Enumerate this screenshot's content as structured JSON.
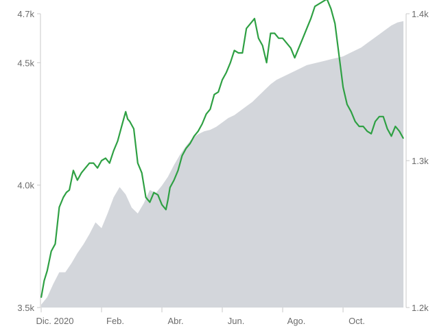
{
  "chart_data": {
    "type": "line",
    "title": "",
    "xlabel": "",
    "grid": false,
    "x_ticks": [
      {
        "label": "Dic. 2020",
        "x": 0
      },
      {
        "label": "Feb.",
        "x": 60
      },
      {
        "label": "Abr.",
        "x": 120
      },
      {
        "label": "Jun.",
        "x": 180
      },
      {
        "label": "Ago.",
        "x": 240
      },
      {
        "label": "Oct.",
        "x": 300
      }
    ],
    "xlim": [
      0,
      362
    ],
    "left_axis": {
      "ylim": [
        3.5,
        4.7
      ],
      "ticks": [
        {
          "label": "3.5k",
          "value": 3.5
        },
        {
          "label": "4.0k",
          "value": 4.0
        },
        {
          "label": "4.5k",
          "value": 4.5
        },
        {
          "label": "4.7k",
          "value": 4.7
        }
      ]
    },
    "right_axis": {
      "ylim": [
        1.2,
        1.4
      ],
      "ticks": [
        {
          "label": "1.2k",
          "value": 1.2
        },
        {
          "label": "1.3k",
          "value": 1.3
        },
        {
          "label": "1.4k",
          "value": 1.4
        }
      ]
    },
    "series": [
      {
        "axis": "left",
        "style": "line",
        "color": "#2ea043",
        "points": [
          [
            0,
            3.54
          ],
          [
            3,
            3.61
          ],
          [
            6,
            3.65
          ],
          [
            10,
            3.73
          ],
          [
            14,
            3.76
          ],
          [
            18,
            3.91
          ],
          [
            22,
            3.95
          ],
          [
            25,
            3.97
          ],
          [
            28,
            3.98
          ],
          [
            32,
            4.06
          ],
          [
            36,
            4.02
          ],
          [
            40,
            4.05
          ],
          [
            44,
            4.07
          ],
          [
            48,
            4.09
          ],
          [
            52,
            4.09
          ],
          [
            56,
            4.07
          ],
          [
            60,
            4.1
          ],
          [
            64,
            4.11
          ],
          [
            68,
            4.09
          ],
          [
            72,
            4.14
          ],
          [
            76,
            4.18
          ],
          [
            80,
            4.24
          ],
          [
            84,
            4.3
          ],
          [
            86,
            4.27
          ],
          [
            88,
            4.26
          ],
          [
            92,
            4.23
          ],
          [
            96,
            4.09
          ],
          [
            100,
            4.05
          ],
          [
            104,
            3.95
          ],
          [
            108,
            3.93
          ],
          [
            112,
            3.97
          ],
          [
            116,
            3.96
          ],
          [
            120,
            3.92
          ],
          [
            124,
            3.9
          ],
          [
            126,
            3.94
          ],
          [
            128,
            3.99
          ],
          [
            132,
            4.02
          ],
          [
            136,
            4.06
          ],
          [
            140,
            4.12
          ],
          [
            144,
            4.15
          ],
          [
            148,
            4.17
          ],
          [
            152,
            4.2
          ],
          [
            156,
            4.22
          ],
          [
            160,
            4.25
          ],
          [
            164,
            4.29
          ],
          [
            168,
            4.31
          ],
          [
            172,
            4.37
          ],
          [
            176,
            4.38
          ],
          [
            180,
            4.43
          ],
          [
            184,
            4.46
          ],
          [
            188,
            4.5
          ],
          [
            192,
            4.55
          ],
          [
            196,
            4.54
          ],
          [
            200,
            4.54
          ],
          [
            204,
            4.64
          ],
          [
            208,
            4.66
          ],
          [
            212,
            4.68
          ],
          [
            216,
            4.6
          ],
          [
            220,
            4.57
          ],
          [
            224,
            4.5
          ],
          [
            228,
            4.62
          ],
          [
            232,
            4.62
          ],
          [
            236,
            4.6
          ],
          [
            240,
            4.6
          ],
          [
            244,
            4.58
          ],
          [
            248,
            4.56
          ],
          [
            252,
            4.52
          ],
          [
            256,
            4.56
          ],
          [
            260,
            4.6
          ],
          [
            264,
            4.64
          ],
          [
            268,
            4.68
          ],
          [
            272,
            4.73
          ],
          [
            276,
            4.74
          ],
          [
            280,
            4.75
          ],
          [
            284,
            4.76
          ],
          [
            288,
            4.72
          ],
          [
            292,
            4.66
          ],
          [
            296,
            4.53
          ],
          [
            300,
            4.4
          ],
          [
            304,
            4.33
          ],
          [
            308,
            4.3
          ],
          [
            312,
            4.26
          ],
          [
            316,
            4.24
          ],
          [
            320,
            4.24
          ],
          [
            324,
            4.22
          ],
          [
            328,
            4.21
          ],
          [
            332,
            4.26
          ],
          [
            336,
            4.28
          ],
          [
            340,
            4.28
          ],
          [
            344,
            4.23
          ],
          [
            348,
            4.2
          ],
          [
            352,
            4.24
          ],
          [
            356,
            4.22
          ],
          [
            360,
            4.19
          ]
        ]
      },
      {
        "axis": "right",
        "style": "area",
        "color": "#d3d6db",
        "points": [
          [
            0,
            1.202
          ],
          [
            6,
            1.207
          ],
          [
            12,
            1.216
          ],
          [
            18,
            1.224
          ],
          [
            24,
            1.224
          ],
          [
            30,
            1.23
          ],
          [
            36,
            1.237
          ],
          [
            42,
            1.243
          ],
          [
            48,
            1.25
          ],
          [
            54,
            1.258
          ],
          [
            60,
            1.254
          ],
          [
            66,
            1.264
          ],
          [
            72,
            1.275
          ],
          [
            78,
            1.282
          ],
          [
            84,
            1.277
          ],
          [
            90,
            1.268
          ],
          [
            96,
            1.264
          ],
          [
            102,
            1.271
          ],
          [
            108,
            1.28
          ],
          [
            114,
            1.278
          ],
          [
            120,
            1.283
          ],
          [
            126,
            1.289
          ],
          [
            132,
            1.297
          ],
          [
            138,
            1.304
          ],
          [
            144,
            1.31
          ],
          [
            150,
            1.315
          ],
          [
            156,
            1.318
          ],
          [
            162,
            1.32
          ],
          [
            168,
            1.321
          ],
          [
            174,
            1.323
          ],
          [
            180,
            1.326
          ],
          [
            186,
            1.329
          ],
          [
            192,
            1.331
          ],
          [
            198,
            1.334
          ],
          [
            204,
            1.337
          ],
          [
            210,
            1.34
          ],
          [
            216,
            1.344
          ],
          [
            222,
            1.348
          ],
          [
            228,
            1.352
          ],
          [
            234,
            1.355
          ],
          [
            240,
            1.357
          ],
          [
            246,
            1.359
          ],
          [
            252,
            1.361
          ],
          [
            258,
            1.363
          ],
          [
            264,
            1.365
          ],
          [
            270,
            1.366
          ],
          [
            276,
            1.367
          ],
          [
            282,
            1.368
          ],
          [
            288,
            1.369
          ],
          [
            294,
            1.37
          ],
          [
            300,
            1.371
          ],
          [
            306,
            1.373
          ],
          [
            312,
            1.375
          ],
          [
            318,
            1.377
          ],
          [
            324,
            1.38
          ],
          [
            330,
            1.383
          ],
          [
            336,
            1.386
          ],
          [
            342,
            1.389
          ],
          [
            348,
            1.392
          ],
          [
            354,
            1.394
          ],
          [
            360,
            1.395
          ]
        ]
      }
    ]
  }
}
